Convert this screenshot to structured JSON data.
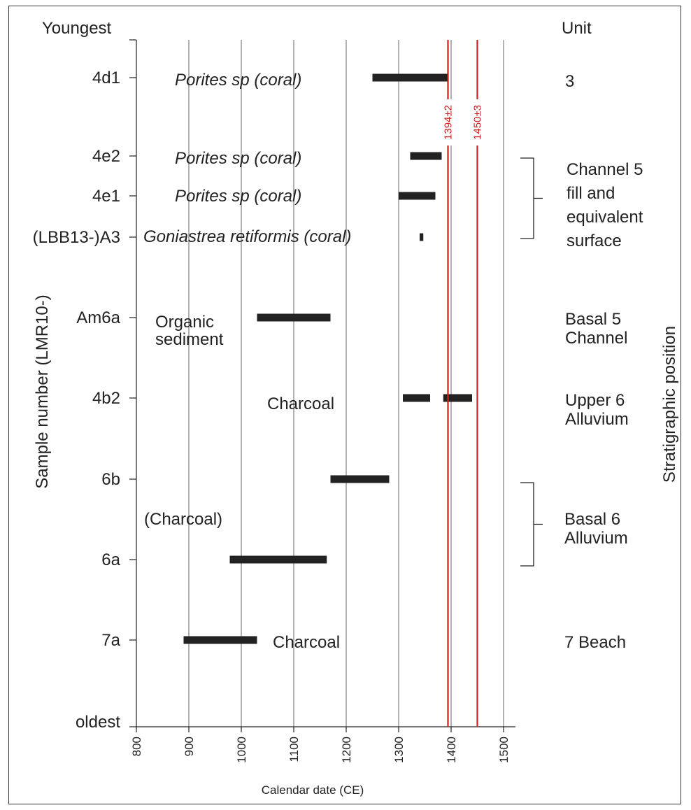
{
  "chart_data": {
    "type": "range-bar",
    "xlabel": "Calendar date (CE)",
    "xlim": [
      800,
      1525
    ],
    "xticks": [
      800,
      900,
      1000,
      1100,
      1200,
      1300,
      1400,
      1500
    ],
    "xtick_labels": [
      "800",
      "900",
      "1000",
      "1100",
      "1200",
      "1300",
      "1400",
      "1500"
    ],
    "ylabel": "Sample number (LMR10-)",
    "top_label": "Youngest",
    "bottom_label": "oldest",
    "right_header": "Unit",
    "right_axis_label": "Stratigraphic position",
    "grid": "vertical",
    "samples": [
      {
        "label": "4d1",
        "material": "Porites sp (coral)",
        "italic": true,
        "ranges": [
          [
            1250,
            1395
          ]
        ]
      },
      {
        "label": "4e2",
        "material": "Porites sp (coral)",
        "italic": true,
        "ranges": [
          [
            1322,
            1382
          ]
        ]
      },
      {
        "label": "4e1",
        "material": "Porites sp (coral)",
        "italic": true,
        "ranges": [
          [
            1300,
            1370
          ]
        ]
      },
      {
        "label": "(LBB13-)A3",
        "material": "Goniastrea retiformis (coral)",
        "italic": true,
        "ranges": [
          [
            1340,
            1347
          ]
        ]
      },
      {
        "label": "Am6a",
        "material": "Organic\nsediment",
        "italic": false,
        "ranges": [
          [
            1030,
            1170
          ]
        ]
      },
      {
        "label": "4b2",
        "material": "Charcoal",
        "italic": false,
        "ranges": [
          [
            1308,
            1360
          ],
          [
            1385,
            1440
          ]
        ]
      },
      {
        "label": "6b",
        "material": "",
        "italic": false,
        "ranges": [
          [
            1170,
            1282
          ]
        ]
      },
      {
        "label": "6a",
        "material": "",
        "italic": false,
        "ranges": [
          [
            978,
            1163
          ]
        ]
      },
      {
        "label": "7a",
        "material": "Charcoal",
        "italic": false,
        "ranges": [
          [
            890,
            1030
          ]
        ]
      }
    ],
    "group_material": "(Charcoal)",
    "reference_lines": [
      {
        "value": 1394,
        "label": "1394±2",
        "color": "#cc1f1f"
      },
      {
        "value": 1450,
        "label": "1450±3",
        "color": "#cc1f1f"
      }
    ],
    "units": [
      {
        "text": "3",
        "bracket": false
      },
      {
        "text": "Channel 5\nfill and\nequivalent\nsurface",
        "bracket": true
      },
      {
        "text": "Basal 5\nChannel",
        "bracket": false
      },
      {
        "text": "Upper 6\nAlluvium",
        "bracket": false
      },
      {
        "text": "Basal 6\nAlluvium",
        "bracket": true
      },
      {
        "text": "7 Beach",
        "bracket": false
      }
    ]
  }
}
